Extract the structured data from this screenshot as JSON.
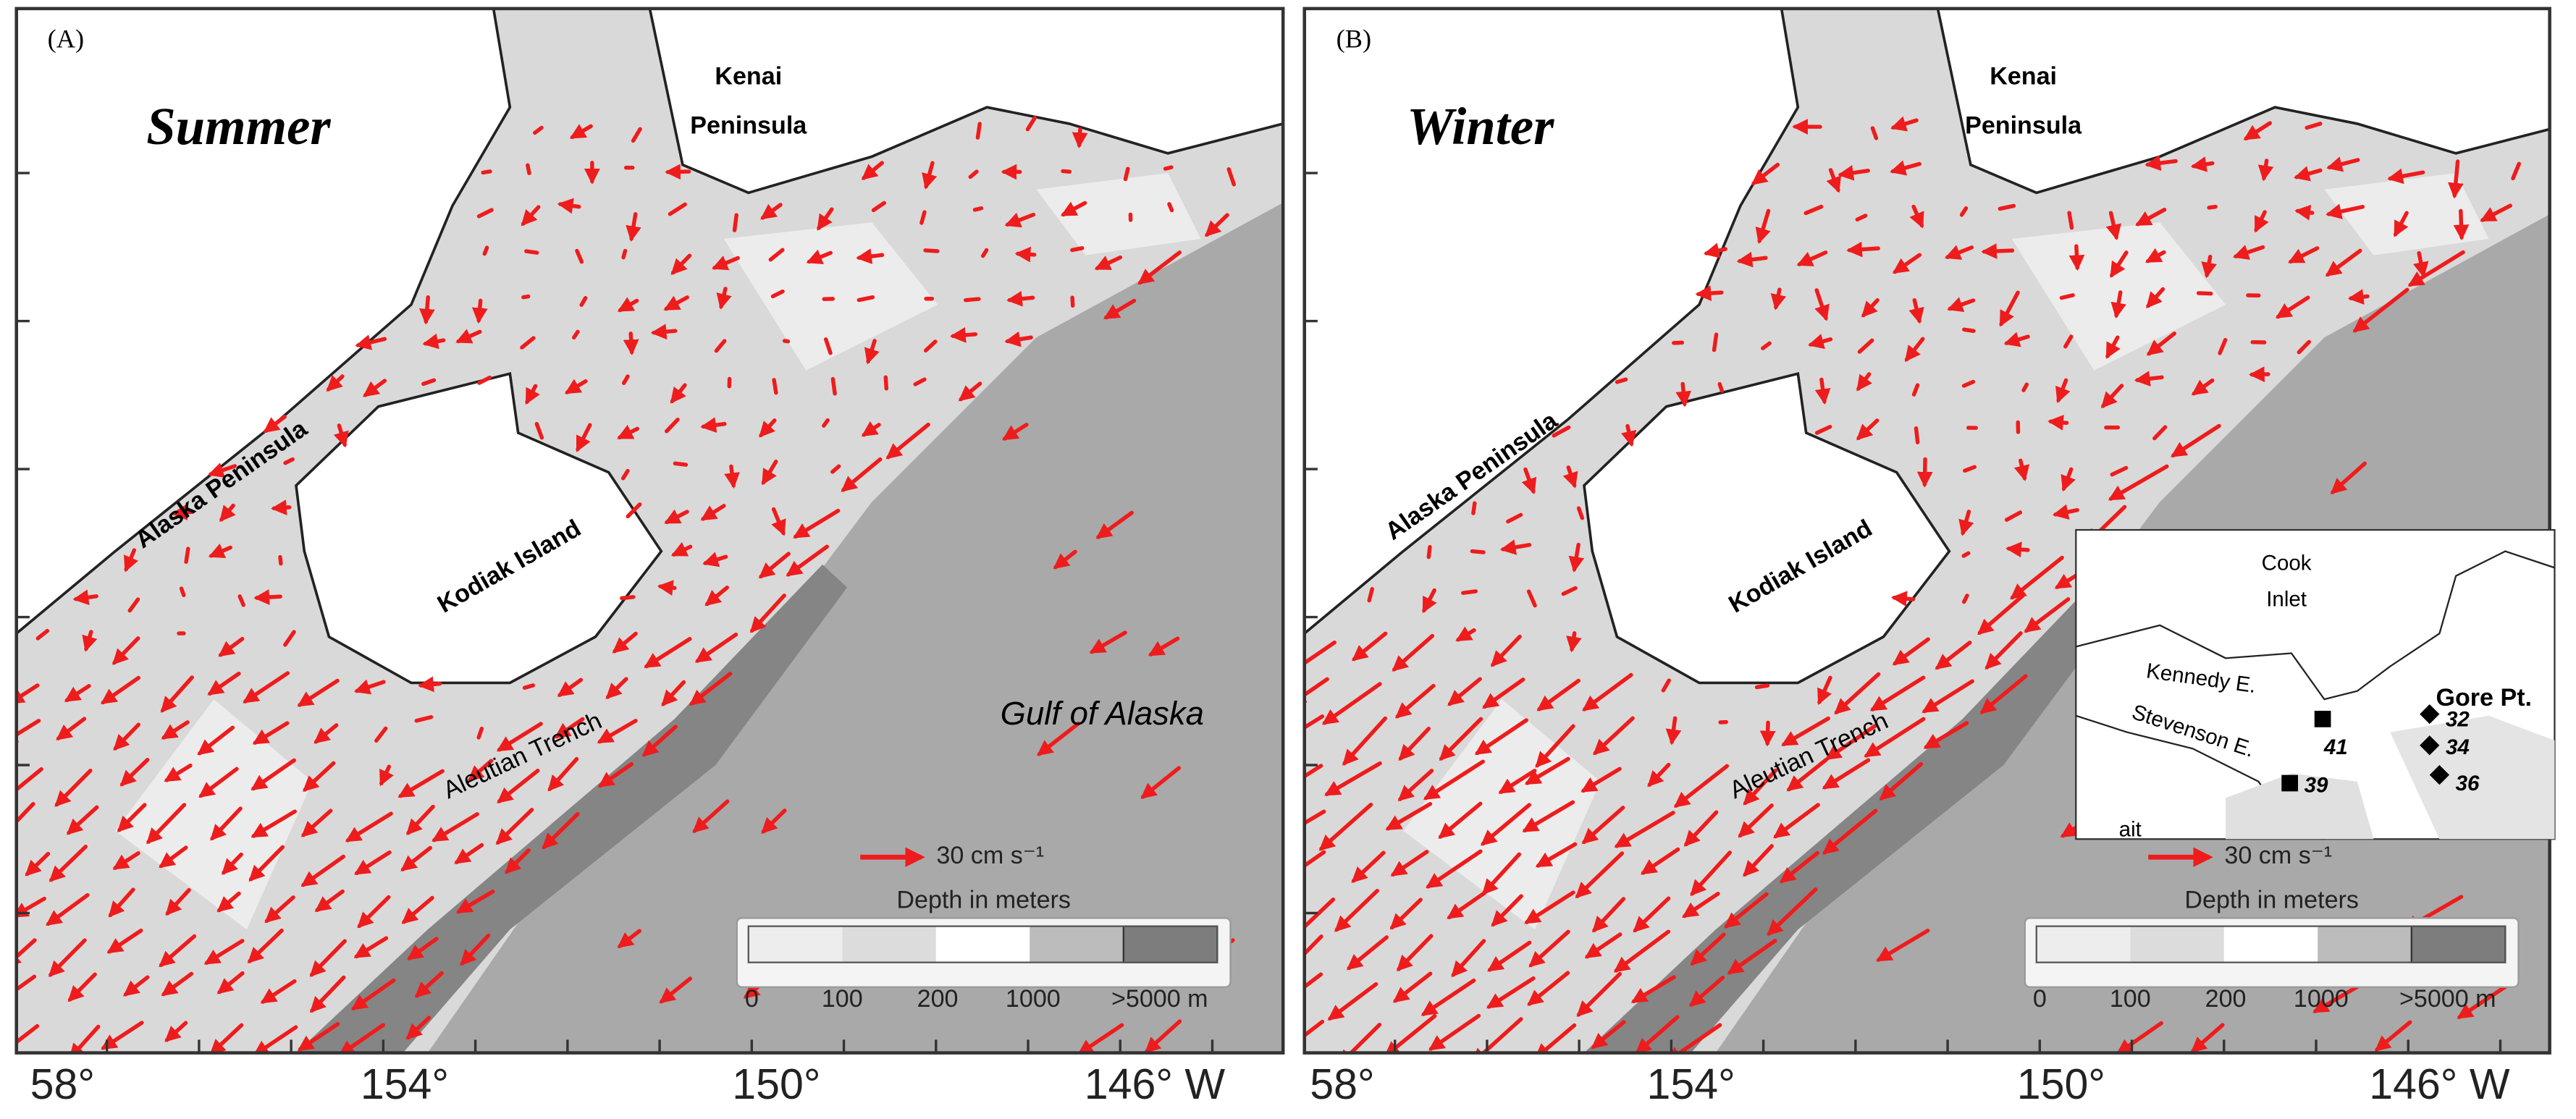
{
  "panels": [
    {
      "label": "(A)",
      "season": "Summer",
      "places": [
        "Kenai",
        "Peninsula",
        "Alaska Peninsula",
        "Kodiak Island",
        "Gulf of Alaska",
        "Aleutian Trench"
      ],
      "scale_label": "30 cm s⁻¹",
      "legend_title": "Depth in meters",
      "legend_labels": [
        "0",
        "100",
        "200",
        "1000",
        ">5000 m"
      ],
      "x_labels": [
        "58°",
        "154°",
        "150°",
        "146° W"
      ]
    },
    {
      "label": "(B)",
      "season": "Winter",
      "places": [
        "Kenai",
        "Peninsula",
        "Alaska Peninsula",
        "Kodiak Island",
        "Aleutian Trench"
      ],
      "scale_label": "30 cm s⁻¹",
      "legend_title": "Depth in meters",
      "legend_labels": [
        "0",
        "100",
        "200",
        "1000",
        ">5000 m"
      ],
      "x_labels": [
        "58°",
        "154°",
        "150°",
        "146° W"
      ],
      "inset": {
        "labels": [
          "Cook",
          "Inlet",
          "Kennedy E.",
          "Stevenson E.",
          "Gore Pt.",
          "ait"
        ],
        "stations": [
          "41",
          "39",
          "32",
          "34",
          "36"
        ]
      }
    }
  ]
}
